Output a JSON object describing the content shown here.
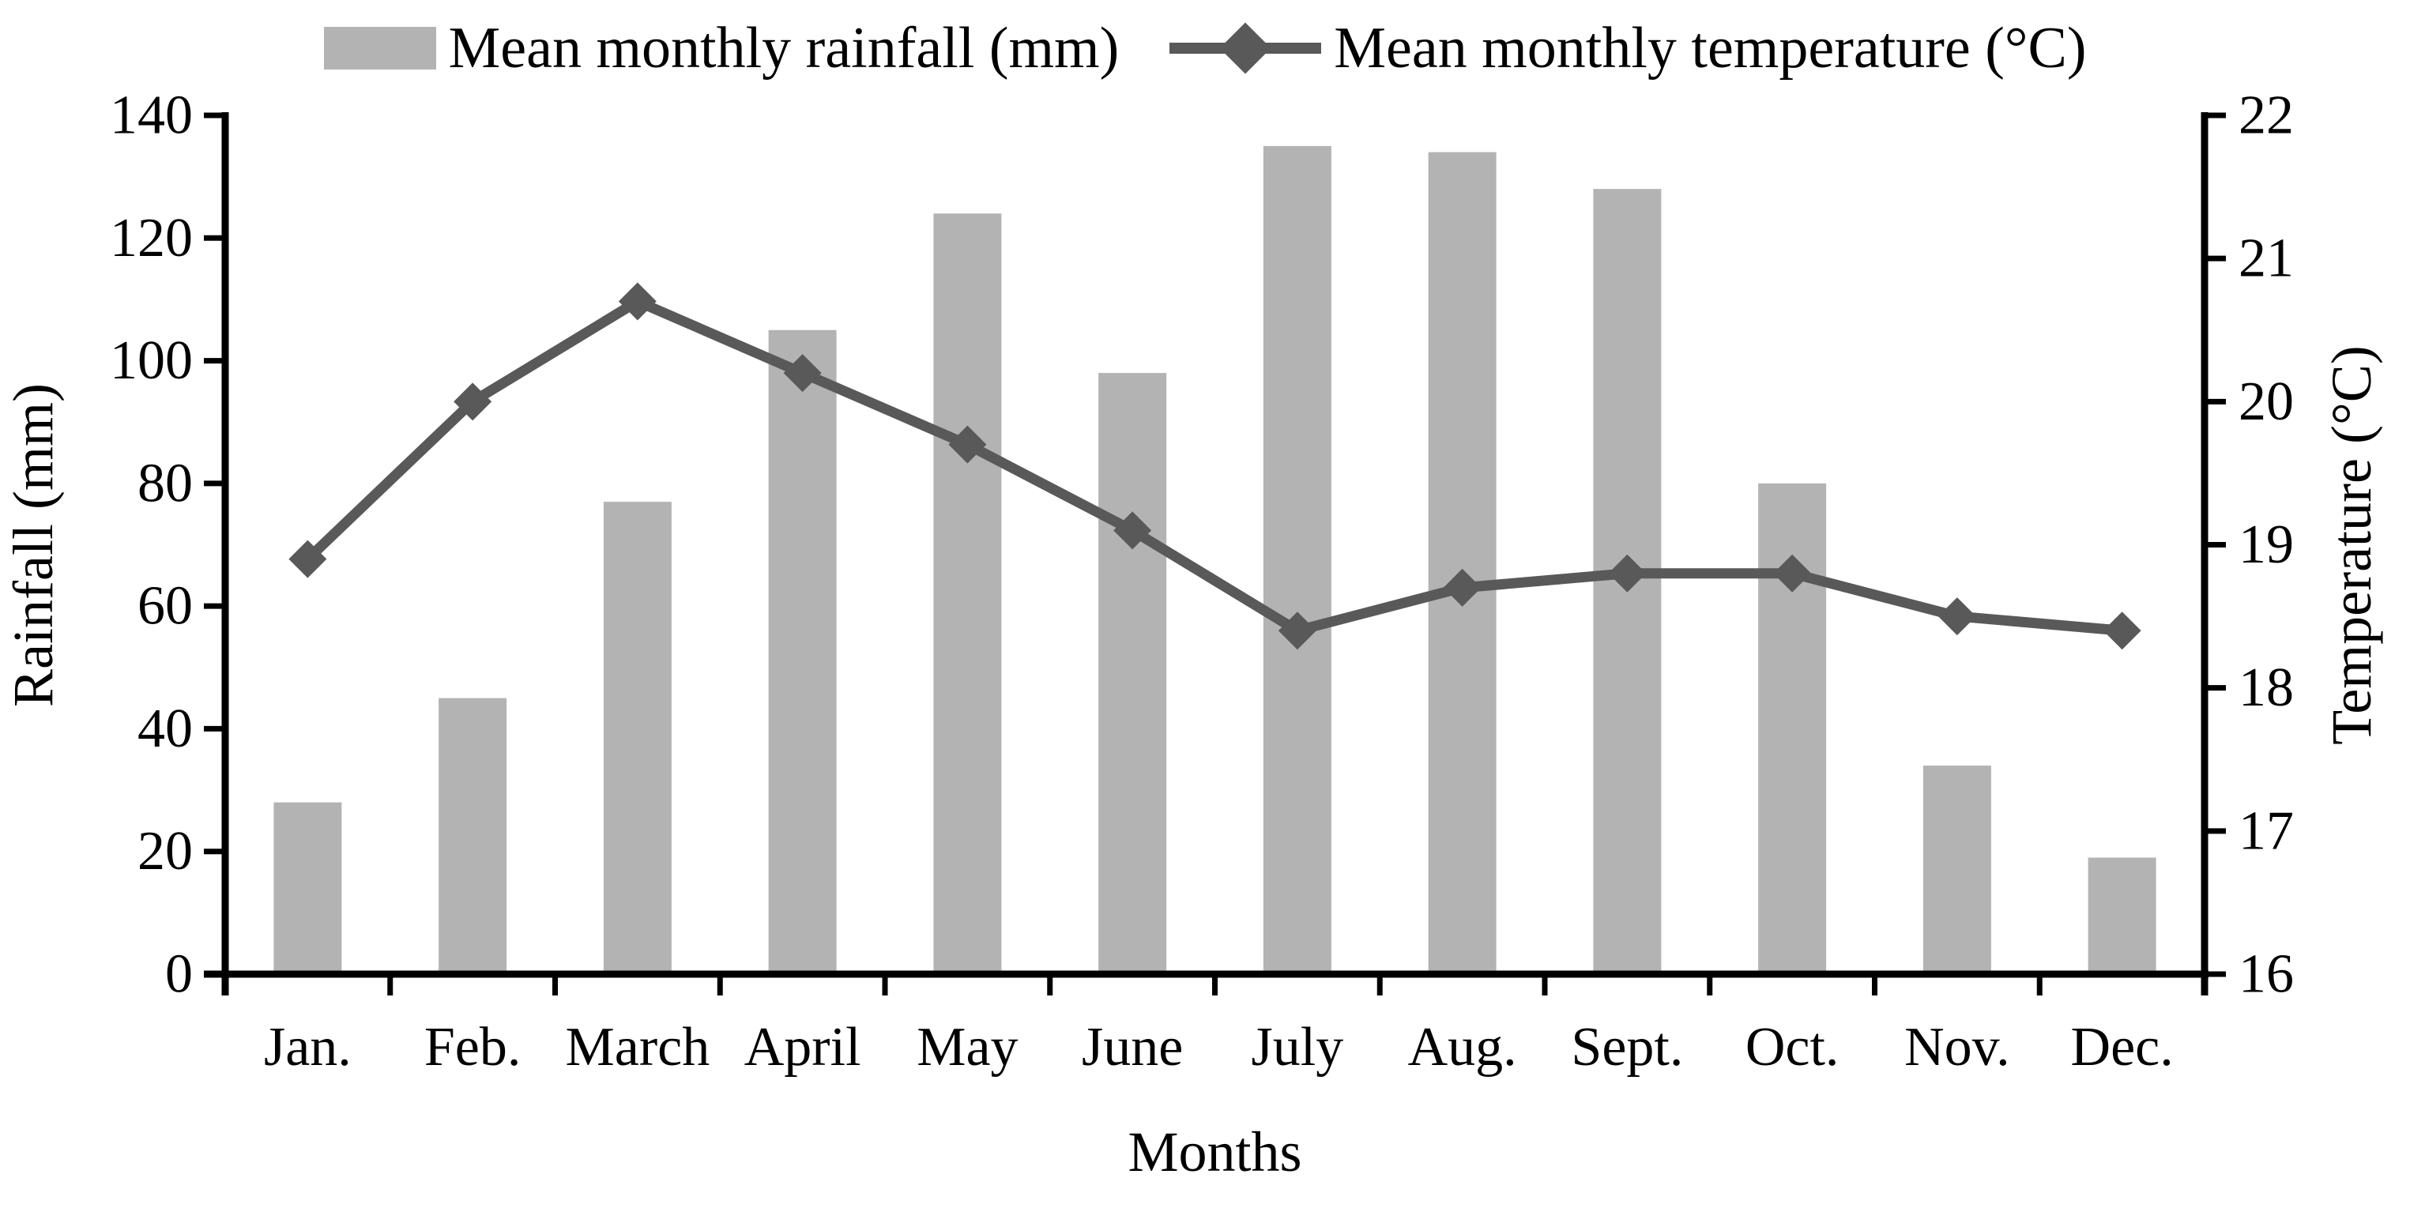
{
  "chart_data": {
    "type": "bar",
    "subtype": "combo-bar-line-dual-axis",
    "title": "",
    "categories": [
      "Jan.",
      "Feb.",
      "March",
      "April",
      "May",
      "June",
      "July",
      "Aug.",
      "Sept.",
      "Oct.",
      "Nov.",
      "Dec."
    ],
    "series": [
      {
        "name": "Mean monthly rainfall (mm)",
        "type": "bar",
        "axis": "left",
        "values": [
          28,
          45,
          77,
          105,
          124,
          98,
          135,
          134,
          128,
          80,
          34,
          19
        ]
      },
      {
        "name": "Mean monthly temperature (°C)",
        "type": "line",
        "marker": "diamond",
        "axis": "right",
        "values": [
          18.9,
          20.0,
          20.7,
          20.2,
          19.7,
          19.1,
          18.4,
          18.7,
          18.8,
          18.8,
          18.5,
          18.4
        ]
      }
    ],
    "xlabel": "Months",
    "left_axis": {
      "title": "Rainfall (mm)",
      "min": 0,
      "max": 140,
      "step": 20,
      "ticks": [
        "0",
        "20",
        "40",
        "60",
        "80",
        "100",
        "120",
        "140"
      ]
    },
    "right_axis": {
      "title": "Temperature (°C)",
      "min": 16,
      "max": 22,
      "step": 1,
      "ticks": [
        "16",
        "17",
        "18",
        "19",
        "20",
        "21",
        "22"
      ]
    },
    "grid": false,
    "legend_position": "top"
  },
  "colors": {
    "bar": "#b3b3b3",
    "line": "#595959",
    "axis": "#000000",
    "text": "#000000",
    "background": "#ffffff"
  }
}
